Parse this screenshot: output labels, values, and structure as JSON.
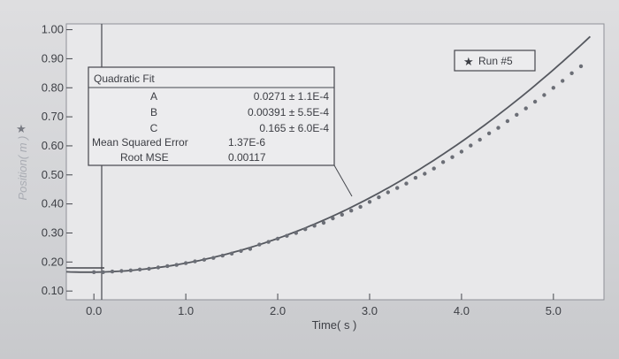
{
  "chart_data": {
    "type": "scatter",
    "xlabel": "Time( s )",
    "ylabel": "Position( m )",
    "xlim": [
      -0.3,
      5.55
    ],
    "ylim": [
      0.07,
      1.02
    ],
    "x_ticks": [
      "0.0",
      "1.0",
      "2.0",
      "3.0",
      "4.0",
      "5.0"
    ],
    "y_ticks": [
      "0.10",
      "0.20",
      "0.30",
      "0.40",
      "0.50",
      "0.60",
      "0.70",
      "0.80",
      "0.90",
      "1.00"
    ],
    "series": [
      {
        "name": "Run #5",
        "marker": "star",
        "color": "#6b6e76",
        "x": [
          0.0,
          0.1,
          0.2,
          0.3,
          0.4,
          0.5,
          0.6,
          0.7,
          0.8,
          0.9,
          1.0,
          1.1,
          1.2,
          1.3,
          1.4,
          1.5,
          1.6,
          1.7,
          1.8,
          1.9,
          2.0,
          2.1,
          2.2,
          2.3,
          2.4,
          2.5,
          2.6,
          2.7,
          2.8,
          2.9,
          3.0,
          3.1,
          3.2,
          3.3,
          3.4,
          3.5,
          3.6,
          3.7,
          3.8,
          3.9,
          4.0,
          4.1,
          4.2,
          4.3,
          4.4,
          4.5,
          4.6,
          4.7,
          4.8,
          4.9,
          5.0,
          5.1,
          5.2,
          5.3
        ],
        "y": [
          0.165,
          0.165,
          0.167,
          0.169,
          0.171,
          0.174,
          0.177,
          0.181,
          0.186,
          0.19,
          0.196,
          0.202,
          0.208,
          0.214,
          0.222,
          0.229,
          0.238,
          0.245,
          0.26,
          0.269,
          0.28,
          0.29,
          0.3,
          0.313,
          0.325,
          0.335,
          0.35,
          0.363,
          0.377,
          0.39,
          0.407,
          0.423,
          0.44,
          0.455,
          0.47,
          0.49,
          0.504,
          0.522,
          0.544,
          0.561,
          0.58,
          0.601,
          0.621,
          0.643,
          0.662,
          0.685,
          0.707,
          0.729,
          0.752,
          0.775,
          0.8,
          0.824,
          0.85,
          0.874
        ]
      }
    ],
    "fit": {
      "title": "Quadratic Fit",
      "model": "quadratic",
      "A": 0.0271,
      "B": 0.00391,
      "C": 0.165,
      "x_range": [
        -0.3,
        5.4
      ],
      "rows": [
        {
          "label": "A",
          "value": "0.0271 ± 1.1E-4"
        },
        {
          "label": "B",
          "value": "0.00391 ± 5.5E-4"
        },
        {
          "label": "C",
          "value": "0.165 ± 6.0E-4"
        },
        {
          "label": "Mean Squared Error",
          "value": "1.37E-6"
        },
        {
          "label": "Root MSE",
          "value": "0.00117"
        }
      ]
    },
    "legend": {
      "label": "Run #5",
      "position": "top-right"
    },
    "grid": false
  }
}
